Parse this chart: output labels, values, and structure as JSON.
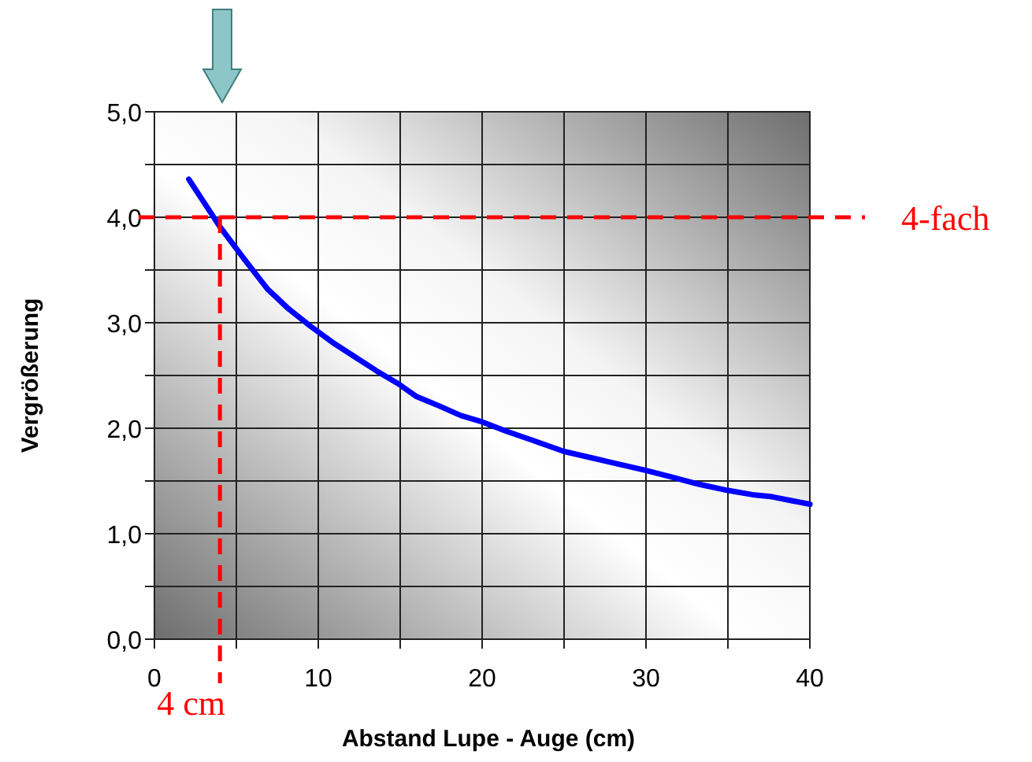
{
  "chart_data": {
    "type": "line",
    "xlabel": "Abstand Lupe - Auge (cm)",
    "ylabel": "Vergrößerung",
    "x": [
      2.1,
      4,
      5.5,
      6.9,
      8.2,
      9.5,
      11,
      12.3,
      13.6,
      14.9,
      16,
      17.4,
      18.7,
      20,
      21.5,
      23,
      25,
      27.5,
      30,
      31.5,
      33.2,
      35,
      36.5,
      37.7,
      39,
      40
    ],
    "series": [
      {
        "color": "#0000ff",
        "values": [
          4.36,
          3.91,
          3.6,
          3.32,
          3.13,
          2.97,
          2.8,
          2.67,
          2.54,
          2.42,
          2.3,
          2.21,
          2.12,
          2.06,
          1.97,
          1.89,
          1.78,
          1.69,
          1.6,
          1.54,
          1.47,
          1.41,
          1.37,
          1.35,
          1.31,
          1.28
        ]
      }
    ],
    "xlim": [
      0,
      40
    ],
    "xticks": [
      0,
      {
        "value": 5,
        "label": null
      },
      10,
      {
        "value": 15,
        "label": null
      },
      20,
      {
        "value": 25,
        "label": null
      },
      30,
      {
        "value": 35,
        "label": null
      },
      40
    ],
    "ylim": [
      0,
      5
    ],
    "yticks": [
      {
        "value": 0,
        "label": "0,0"
      },
      {
        "value": 0.5,
        "label": null
      },
      {
        "value": 1,
        "label": "1,0"
      },
      {
        "value": 1.5,
        "label": null
      },
      {
        "value": 2,
        "label": "2,0"
      },
      {
        "value": 2.5,
        "label": null
      },
      {
        "value": 3,
        "label": "3,0"
      },
      {
        "value": 3.5,
        "label": null
      },
      {
        "value": 4,
        "label": "4,0"
      },
      {
        "value": 4.5,
        "label": null
      },
      {
        "value": 5,
        "label": "5,0"
      }
    ],
    "grid": true,
    "marker": "none",
    "line_style": "solid",
    "ref_lines": [
      {
        "axis": "y",
        "value": 4,
        "label": "4-fach",
        "color": "#ff0000",
        "line_style": "dashed"
      },
      {
        "axis": "x",
        "value": 4,
        "label": "4 cm",
        "color": "#ff0000",
        "line_style": "dashed"
      }
    ]
  }
}
